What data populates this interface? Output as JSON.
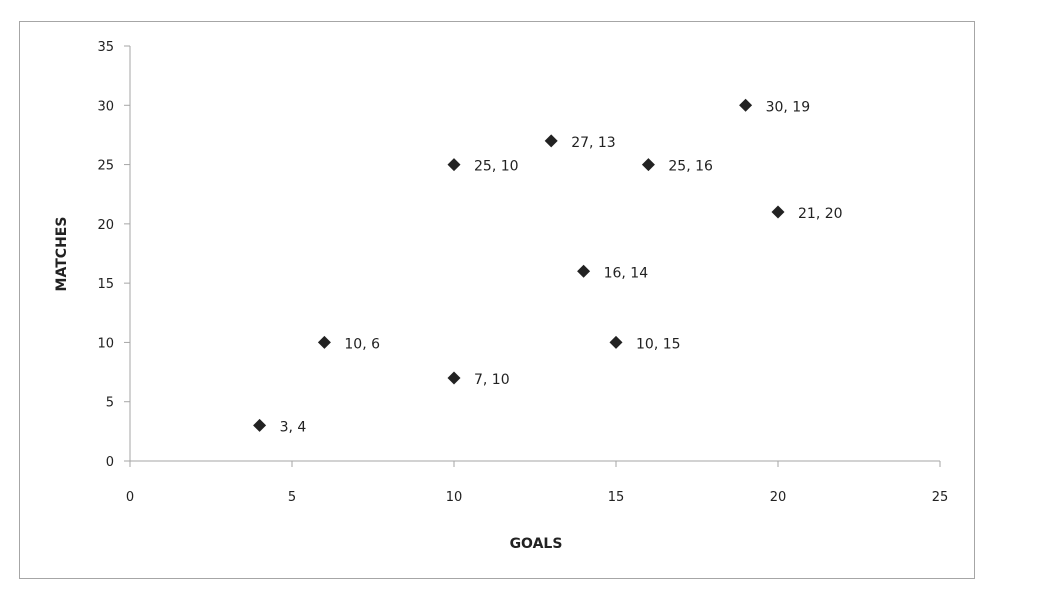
{
  "chart_data": {
    "type": "scatter",
    "title": "",
    "xlabel": "GOALS",
    "ylabel": "MATCHES",
    "xlim": [
      0,
      25
    ],
    "ylim": [
      0,
      35
    ],
    "xticks": [
      "0",
      "5",
      "10",
      "15",
      "20",
      "25"
    ],
    "yticks": [
      "0",
      "5",
      "10",
      "15",
      "20",
      "25",
      "30",
      "35"
    ],
    "grid": false,
    "legend": "none",
    "marker": "diamond",
    "marker_color": "#222222",
    "points": [
      {
        "x": 4,
        "y": 3,
        "label": "3, 4"
      },
      {
        "x": 6,
        "y": 10,
        "label": "10, 6"
      },
      {
        "x": 10,
        "y": 7,
        "label": "7, 10"
      },
      {
        "x": 10,
        "y": 25,
        "label": "25, 10"
      },
      {
        "x": 13,
        "y": 27,
        "label": "27, 13"
      },
      {
        "x": 16,
        "y": 25,
        "label": "25, 16"
      },
      {
        "x": 19,
        "y": 30,
        "label": "30, 19"
      },
      {
        "x": 20,
        "y": 21,
        "label": "21, 20"
      },
      {
        "x": 14,
        "y": 16,
        "label": "16, 14"
      },
      {
        "x": 15,
        "y": 10,
        "label": "10, 15"
      }
    ]
  }
}
